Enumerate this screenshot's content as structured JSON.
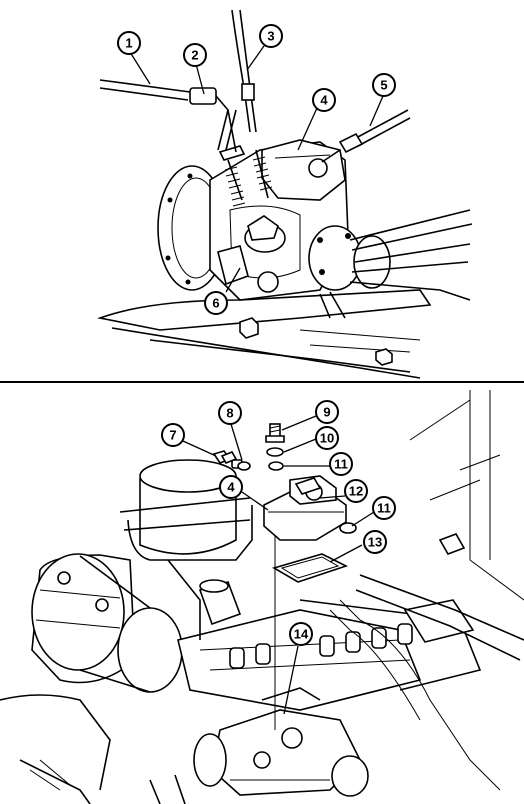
{
  "figure": {
    "callouts": [
      {
        "number": "1"
      },
      {
        "number": "2"
      },
      {
        "number": "3"
      },
      {
        "number": "4"
      },
      {
        "number": "5"
      },
      {
        "number": "6"
      },
      {
        "number": "7"
      },
      {
        "number": "8"
      },
      {
        "number": "9"
      },
      {
        "number": "10"
      },
      {
        "number": "11"
      },
      {
        "number": "4"
      },
      {
        "number": "12"
      },
      {
        "number": "11"
      },
      {
        "number": "13"
      },
      {
        "number": "14"
      }
    ]
  }
}
